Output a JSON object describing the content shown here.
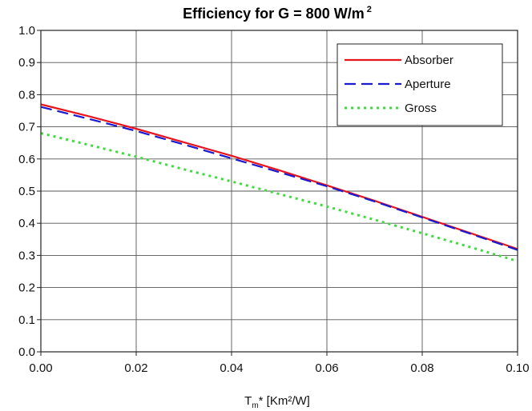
{
  "chart_data": {
    "type": "line",
    "title": {
      "main": "Efficiency for G = 800 W/m",
      "sup": "2"
    },
    "xlabel": {
      "pre": "T",
      "sub": "m",
      "post": "* [Km²/W]"
    },
    "ylabel": "",
    "xlim": [
      0.0,
      0.1
    ],
    "ylim": [
      0.0,
      1.0
    ],
    "x_ticks": [
      "0.00",
      "0.02",
      "0.04",
      "0.06",
      "0.08",
      "0.10"
    ],
    "y_ticks": [
      "0.0",
      "0.1",
      "0.2",
      "0.3",
      "0.4",
      "0.5",
      "0.6",
      "0.7",
      "0.8",
      "0.9",
      "1.0"
    ],
    "grid": true,
    "legend_position": "top-right",
    "series": [
      {
        "name": "Absorber",
        "color": "#e8141c",
        "style": "solid",
        "x": [
          0.0,
          0.01,
          0.02,
          0.03,
          0.04,
          0.05,
          0.06,
          0.07,
          0.08,
          0.09,
          0.1
        ],
        "y": [
          0.77,
          0.733,
          0.694,
          0.652,
          0.61,
          0.565,
          0.518,
          0.47,
          0.42,
          0.37,
          0.32
        ]
      },
      {
        "name": "Aperture",
        "color": "#1a1ad0",
        "style": "dashed",
        "x": [
          0.0,
          0.01,
          0.02,
          0.03,
          0.04,
          0.05,
          0.06,
          0.07,
          0.08,
          0.09,
          0.1
        ],
        "y": [
          0.762,
          0.725,
          0.687,
          0.645,
          0.602,
          0.559,
          0.515,
          0.468,
          0.418,
          0.368,
          0.317
        ]
      },
      {
        "name": "Gross",
        "color": "#3ddc3d",
        "style": "dotted",
        "x": [
          0.0,
          0.01,
          0.02,
          0.03,
          0.04,
          0.05,
          0.06,
          0.07,
          0.08,
          0.09,
          0.1
        ],
        "y": [
          0.68,
          0.644,
          0.607,
          0.568,
          0.53,
          0.491,
          0.452,
          0.411,
          0.369,
          0.326,
          0.282
        ]
      }
    ]
  }
}
